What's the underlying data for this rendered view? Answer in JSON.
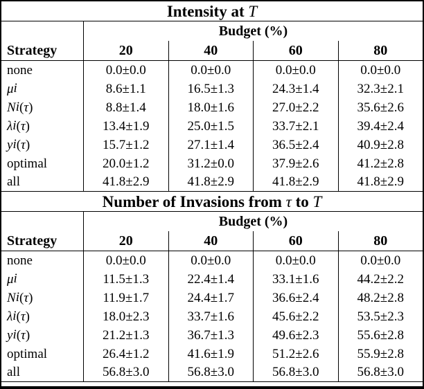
{
  "page": {
    "background": "#ffffff",
    "text_color": "#000000",
    "rule_color": "#000000"
  },
  "tables": [
    {
      "title_text": "Intensity at T",
      "title_html": "Intensity at <i>T</i>",
      "header": {
        "strategy": "Strategy",
        "budget": "Budget (%)",
        "columns": [
          "20",
          "40",
          "60",
          "80"
        ]
      },
      "rows": [
        {
          "label": "none",
          "label_html": "none",
          "values": [
            "0.0±0.0",
            "0.0±0.0",
            "0.0±0.0",
            "0.0±0.0"
          ]
        },
        {
          "label": "μi",
          "label_html": "<i>μ</i><sub><i>i</i></sub>",
          "values": [
            "8.6±1.1",
            "16.5±1.3",
            "24.3±1.4",
            "32.3±2.1"
          ]
        },
        {
          "label": "Ni(τ)",
          "label_html": "<i>N</i><sub><i>i</i></sub>(<i>τ</i>)",
          "values": [
            "8.8±1.4",
            "18.0±1.6",
            "27.0±2.2",
            "35.6±2.6"
          ]
        },
        {
          "label": "λi(τ)",
          "label_html": "<i>λ</i><sub><i>i</i></sub>(<i>τ</i>)",
          "values": [
            "13.4±1.9",
            "25.0±1.5",
            "33.7±2.1",
            "39.4±2.4"
          ]
        },
        {
          "label": "yi(τ)",
          "label_html": "<i>y</i><sub><i>i</i></sub>(<i>τ</i>)",
          "values": [
            "15.7±1.2",
            "27.1±1.4",
            "36.5±2.4",
            "40.9±2.8"
          ]
        },
        {
          "label": "optimal",
          "label_html": "optimal",
          "values": [
            "20.0±1.2",
            "31.2±0.0",
            "37.9±2.6",
            "41.2±2.8"
          ]
        },
        {
          "label": "all",
          "label_html": "all",
          "values": [
            "41.8±2.9",
            "41.8±2.9",
            "41.8±2.9",
            "41.8±2.9"
          ]
        }
      ]
    },
    {
      "title_text": "Number of Invasions from τ to T",
      "title_html": "Number of Invasions from <i>τ</i> to <i>T</i>",
      "header": {
        "strategy": "Strategy",
        "budget": "Budget (%)",
        "columns": [
          "20",
          "40",
          "60",
          "80"
        ]
      },
      "rows": [
        {
          "label": "none",
          "label_html": "none",
          "values": [
            "0.0±0.0",
            "0.0±0.0",
            "0.0±0.0",
            "0.0±0.0"
          ]
        },
        {
          "label": "μi",
          "label_html": "<i>μ</i><sub><i>i</i></sub>",
          "values": [
            "11.5±1.3",
            "22.4±1.4",
            "33.1±1.6",
            "44.2±2.2"
          ]
        },
        {
          "label": "Ni(τ)",
          "label_html": "<i>N</i><sub><i>i</i></sub>(<i>τ</i>)",
          "values": [
            "11.9±1.7",
            "24.4±1.7",
            "36.6±2.4",
            "48.2±2.8"
          ]
        },
        {
          "label": "λi(τ)",
          "label_html": "<i>λ</i><sub><i>i</i></sub>(<i>τ</i>)",
          "values": [
            "18.0±2.3",
            "33.7±1.6",
            "45.6±2.2",
            "53.5±2.3"
          ]
        },
        {
          "label": "yi(τ)",
          "label_html": "<i>y</i><sub><i>i</i></sub>(<i>τ</i>)",
          "values": [
            "21.2±1.3",
            "36.7±1.3",
            "49.6±2.3",
            "55.6±2.8"
          ]
        },
        {
          "label": "optimal",
          "label_html": "optimal",
          "values": [
            "26.4±1.2",
            "41.6±1.9",
            "51.2±2.6",
            "55.9±2.8"
          ]
        },
        {
          "label": "all",
          "label_html": "all",
          "values": [
            "56.8±3.0",
            "56.8±3.0",
            "56.8±3.0",
            "56.8±3.0"
          ]
        }
      ]
    }
  ]
}
